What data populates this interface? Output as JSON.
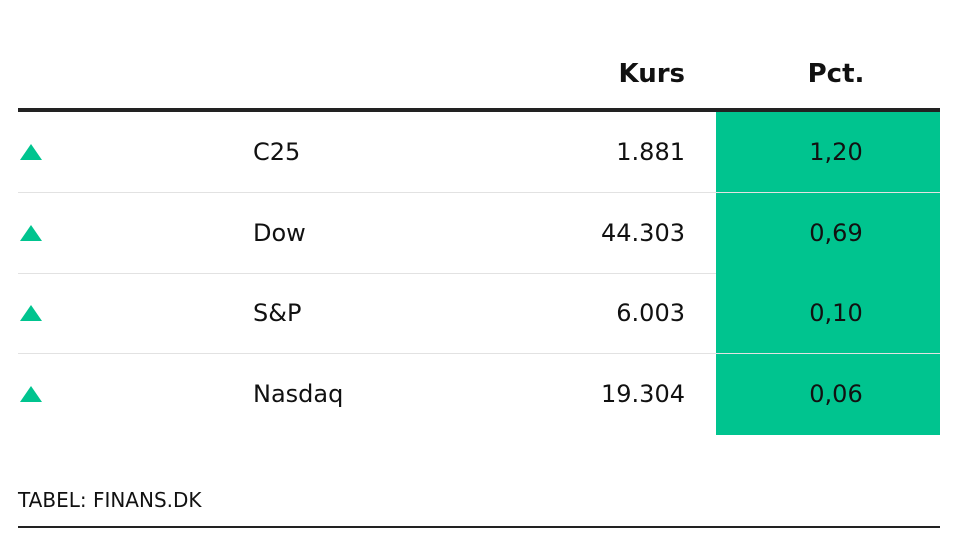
{
  "table": {
    "columns": [
      "Kurs",
      "Pct."
    ],
    "rows": [
      [
        "C25",
        "1.881",
        "1,20"
      ],
      [
        "Dow",
        "44.303",
        "0,69"
      ],
      [
        "S&P",
        "6.003",
        "0,10"
      ],
      [
        "Nasdaq",
        "19.304",
        "0,06"
      ]
    ]
  },
  "footer": {
    "source": "TABEL: FINANS.DK"
  }
}
